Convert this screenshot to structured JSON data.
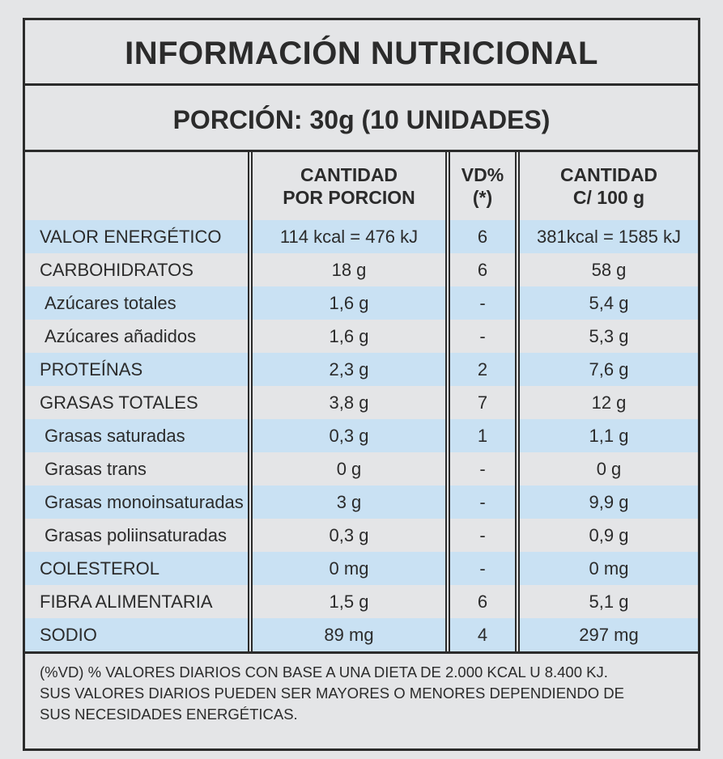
{
  "title": "INFORMACIÓN NUTRICIONAL",
  "portion": "PORCIÓN: 30g (10 UNIDADES)",
  "headers": [
    [
      "CANTIDAD",
      "POR PORCION"
    ],
    [
      "VD%",
      "(*)"
    ],
    [
      "CANTIDAD",
      "C/ 100 g"
    ]
  ],
  "rows": [
    [
      "VALOR ENERGÉTICO",
      "114 kcal = 476 kJ",
      "6",
      "381kcal = 1585 kJ"
    ],
    [
      "CARBOHIDRATOS",
      "18 g",
      "6",
      "58 g"
    ],
    [
      "Azúcares totales",
      "1,6 g",
      "-",
      "5,4 g"
    ],
    [
      "Azúcares añadidos",
      "1,6 g",
      "-",
      "5,3 g"
    ],
    [
      "PROTEÍNAS",
      "2,3 g",
      "2",
      "7,6 g"
    ],
    [
      "GRASAS TOTALES",
      "3,8 g",
      "7",
      "12 g"
    ],
    [
      "Grasas saturadas",
      "0,3 g",
      "1",
      "1,1 g"
    ],
    [
      "Grasas trans",
      "0 g",
      "-",
      "0 g"
    ],
    [
      "Grasas monoinsaturadas",
      "3 g",
      "-",
      "9,9 g"
    ],
    [
      "Grasas poliinsaturadas",
      "0,3 g",
      "-",
      "0,9 g"
    ],
    [
      "COLESTEROL",
      "0 mg",
      "-",
      "0 mg"
    ],
    [
      "FIBRA ALIMENTARIA",
      "1,5 g",
      "6",
      "5,1 g"
    ],
    [
      "SODIO",
      "89 mg",
      "4",
      "297 mg"
    ]
  ],
  "footnote": [
    "(%VD) % VALORES DIARIOS CON BASE A UNA DIETA DE 2.000 KCAL U 8.400 KJ.",
    "SUS VALORES DIARIOS PUEDEN SER MAYORES O MENORES DEPENDIENDO DE",
    "SUS NECESIDADES ENERGÉTICAS."
  ]
}
